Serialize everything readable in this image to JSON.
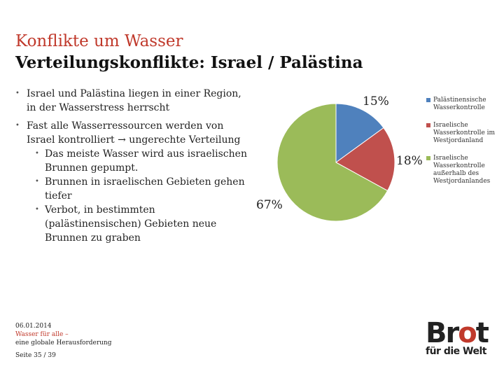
{
  "header": {
    "title": "Konflikte um Wasser",
    "subtitle": "Verteilungskonflikte: Israel / Palästina"
  },
  "bullets": {
    "b1": "Israel  und Palästina liegen in einer Region, in der Wasserstress herrscht",
    "b2": "Fast alle Wasserressourcen werden von Israel kontrolliert → ungerechte Verteilung",
    "sub": [
      "Das meiste Wasser wird aus israelischen Brunnen gepumpt.",
      "Brunnen in israelischen Gebieten gehen tiefer",
      "Verbot, in bestimmten (palästinensischen) Gebieten neue Brunnen zu graben"
    ]
  },
  "chart_data": {
    "type": "pie",
    "categories": [
      "Palästinensische Wasserkontrolle",
      "Israelische Wasserkontrolle im Westjordanland",
      "Israelische Wasserkontrolle außerhalb des Westjordanlandes"
    ],
    "values": [
      15,
      18,
      67
    ],
    "labels": [
      "15%",
      "18%",
      "67%"
    ],
    "colors": [
      "#4f81bd",
      "#c0504d",
      "#9bbb59"
    ],
    "legend_position": "right"
  },
  "footer": {
    "date": "06.01.2014",
    "line1": "Wasser für alle –",
    "line2": "eine globale Herausforderung",
    "page": "Seite 35 / 39"
  },
  "logo": {
    "big_prefix": "Br",
    "big_o": "o",
    "big_suffix": "t",
    "small": "für die Welt"
  }
}
